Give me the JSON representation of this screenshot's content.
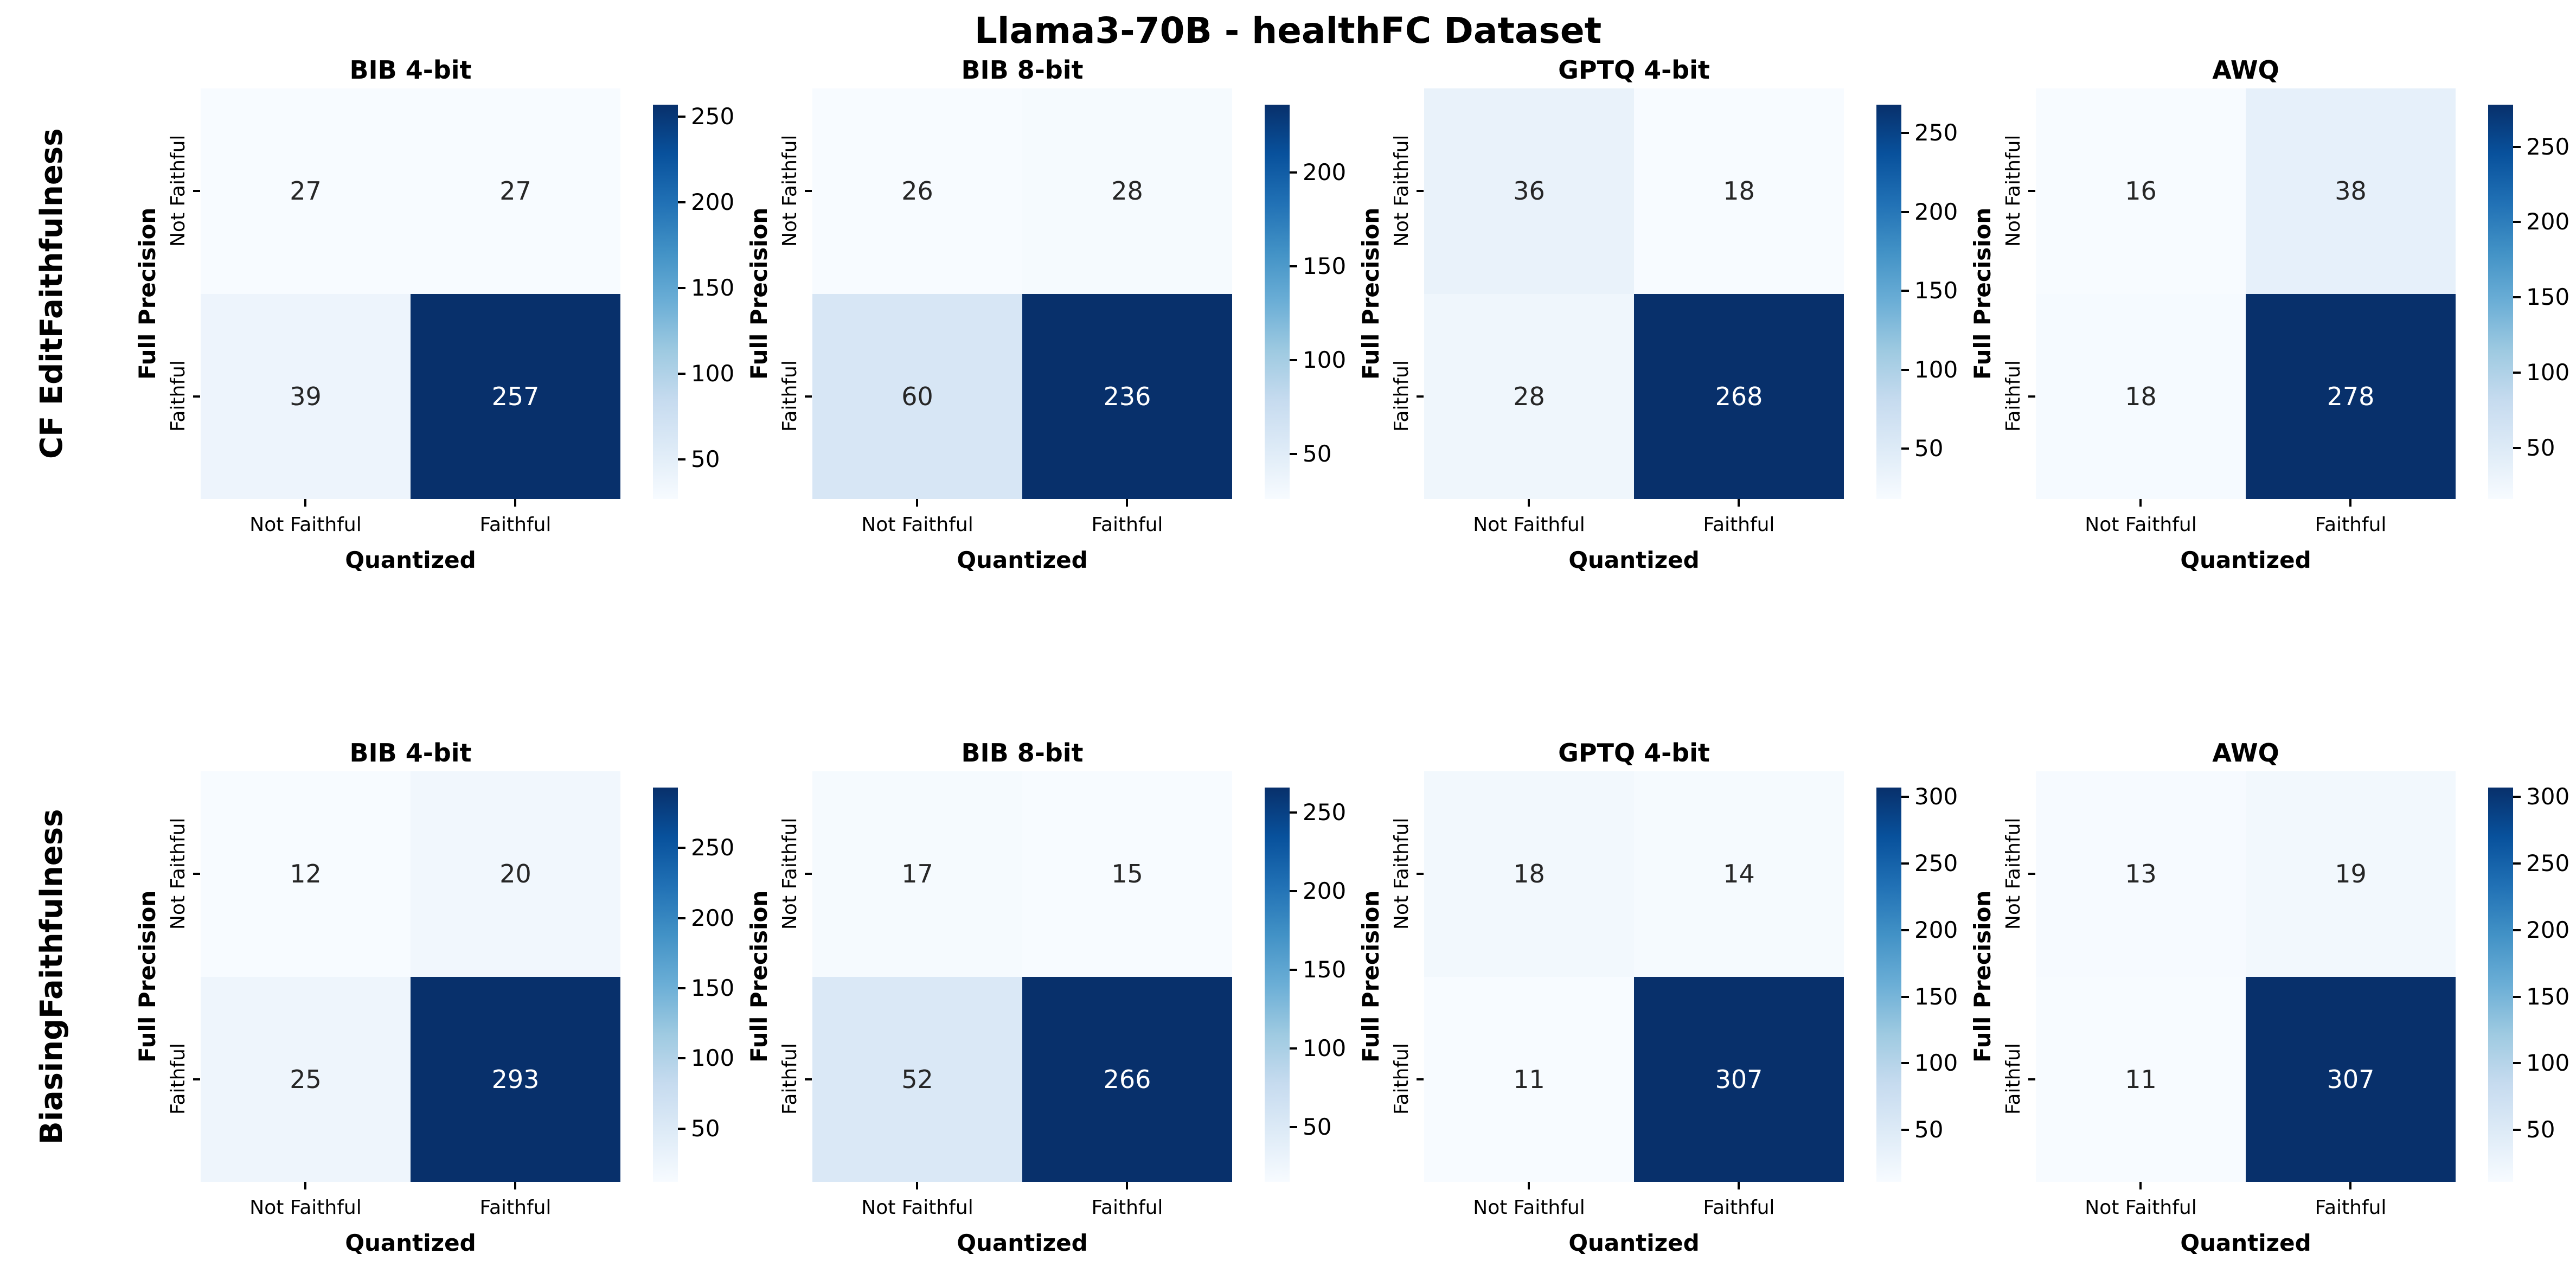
{
  "figure_title": "Llama3-70B - healthFC Dataset",
  "axis": {
    "xlabel": "Quantized",
    "ylabel": "Full Precision",
    "x_ticks": [
      "Not Faithful",
      "Faithful"
    ],
    "y_ticks": [
      "Not Faithful",
      "Faithful"
    ]
  },
  "rows": [
    {
      "label_lines": [
        "CF Edit",
        "Faithfulness"
      ],
      "panel_indices": [
        0,
        1,
        2,
        3
      ]
    },
    {
      "label_lines": [
        "Biasing",
        "Faithfulness"
      ],
      "panel_indices": [
        4,
        5,
        6,
        7
      ]
    }
  ],
  "colors": {
    "background": "#ffffff",
    "colormap": "Blues",
    "colormap_anchors": [
      "#f7fbff",
      "#deebf7",
      "#c6dbef",
      "#9ecae1",
      "#6baed6",
      "#4292c6",
      "#2171b5",
      "#08519c",
      "#08306b"
    ],
    "annot_dark": "#262626",
    "annot_light": "#ffffff",
    "tick_color": "#000000"
  },
  "chart_data": [
    {
      "type": "heatmap",
      "row_group": "CF Edit Faithfulness",
      "title": "BIB 4-bit",
      "xlabel": "Quantized",
      "ylabel": "Full Precision",
      "x_categories": [
        "Not Faithful",
        "Faithful"
      ],
      "y_categories": [
        "Not Faithful",
        "Faithful"
      ],
      "values": [
        [
          27,
          27
        ],
        [
          39,
          257
        ]
      ],
      "vmin": 27,
      "vmax": 257,
      "colorbar_ticks": [
        50,
        100,
        150,
        200,
        250
      ]
    },
    {
      "type": "heatmap",
      "row_group": "CF Edit Faithfulness",
      "title": "BIB 8-bit",
      "xlabel": "Quantized",
      "ylabel": "Full Precision",
      "x_categories": [
        "Not Faithful",
        "Faithful"
      ],
      "y_categories": [
        "Not Faithful",
        "Faithful"
      ],
      "values": [
        [
          26,
          28
        ],
        [
          60,
          236
        ]
      ],
      "vmin": 26,
      "vmax": 236,
      "colorbar_ticks": [
        50,
        100,
        150,
        200
      ]
    },
    {
      "type": "heatmap",
      "row_group": "CF Edit Faithfulness",
      "title": "GPTQ 4-bit",
      "xlabel": "Quantized",
      "ylabel": "Full Precision",
      "x_categories": [
        "Not Faithful",
        "Faithful"
      ],
      "y_categories": [
        "Not Faithful",
        "Faithful"
      ],
      "values": [
        [
          36,
          18
        ],
        [
          28,
          268
        ]
      ],
      "vmin": 18,
      "vmax": 268,
      "colorbar_ticks": [
        50,
        100,
        150,
        200,
        250
      ]
    },
    {
      "type": "heatmap",
      "row_group": "CF Edit Faithfulness",
      "title": "AWQ",
      "xlabel": "Quantized",
      "ylabel": "Full Precision",
      "x_categories": [
        "Not Faithful",
        "Faithful"
      ],
      "y_categories": [
        "Not Faithful",
        "Faithful"
      ],
      "values": [
        [
          16,
          38
        ],
        [
          18,
          278
        ]
      ],
      "vmin": 16,
      "vmax": 278,
      "colorbar_ticks": [
        50,
        100,
        150,
        200,
        250
      ]
    },
    {
      "type": "heatmap",
      "row_group": "Biasing Faithfulness",
      "title": "BIB 4-bit",
      "xlabel": "Quantized",
      "ylabel": "Full Precision",
      "x_categories": [
        "Not Faithful",
        "Faithful"
      ],
      "y_categories": [
        "Not Faithful",
        "Faithful"
      ],
      "values": [
        [
          12,
          20
        ],
        [
          25,
          293
        ]
      ],
      "vmin": 12,
      "vmax": 293,
      "colorbar_ticks": [
        50,
        100,
        150,
        200,
        250
      ]
    },
    {
      "type": "heatmap",
      "row_group": "Biasing Faithfulness",
      "title": "BIB 8-bit",
      "xlabel": "Quantized",
      "ylabel": "Full Precision",
      "x_categories": [
        "Not Faithful",
        "Faithful"
      ],
      "y_categories": [
        "Not Faithful",
        "Faithful"
      ],
      "values": [
        [
          17,
          15
        ],
        [
          52,
          266
        ]
      ],
      "vmin": 15,
      "vmax": 266,
      "colorbar_ticks": [
        50,
        100,
        150,
        200,
        250
      ]
    },
    {
      "type": "heatmap",
      "row_group": "Biasing Faithfulness",
      "title": "GPTQ 4-bit",
      "xlabel": "Quantized",
      "ylabel": "Full Precision",
      "x_categories": [
        "Not Faithful",
        "Faithful"
      ],
      "y_categories": [
        "Not Faithful",
        "Faithful"
      ],
      "values": [
        [
          18,
          14
        ],
        [
          11,
          307
        ]
      ],
      "vmin": 11,
      "vmax": 307,
      "colorbar_ticks": [
        50,
        100,
        150,
        200,
        250,
        300
      ]
    },
    {
      "type": "heatmap",
      "row_group": "Biasing Faithfulness",
      "title": "AWQ",
      "xlabel": "Quantized",
      "ylabel": "Full Precision",
      "x_categories": [
        "Not Faithful",
        "Faithful"
      ],
      "y_categories": [
        "Not Faithful",
        "Faithful"
      ],
      "values": [
        [
          13,
          19
        ],
        [
          11,
          307
        ]
      ],
      "vmin": 11,
      "vmax": 307,
      "colorbar_ticks": [
        50,
        100,
        150,
        200,
        250,
        300
      ]
    }
  ]
}
